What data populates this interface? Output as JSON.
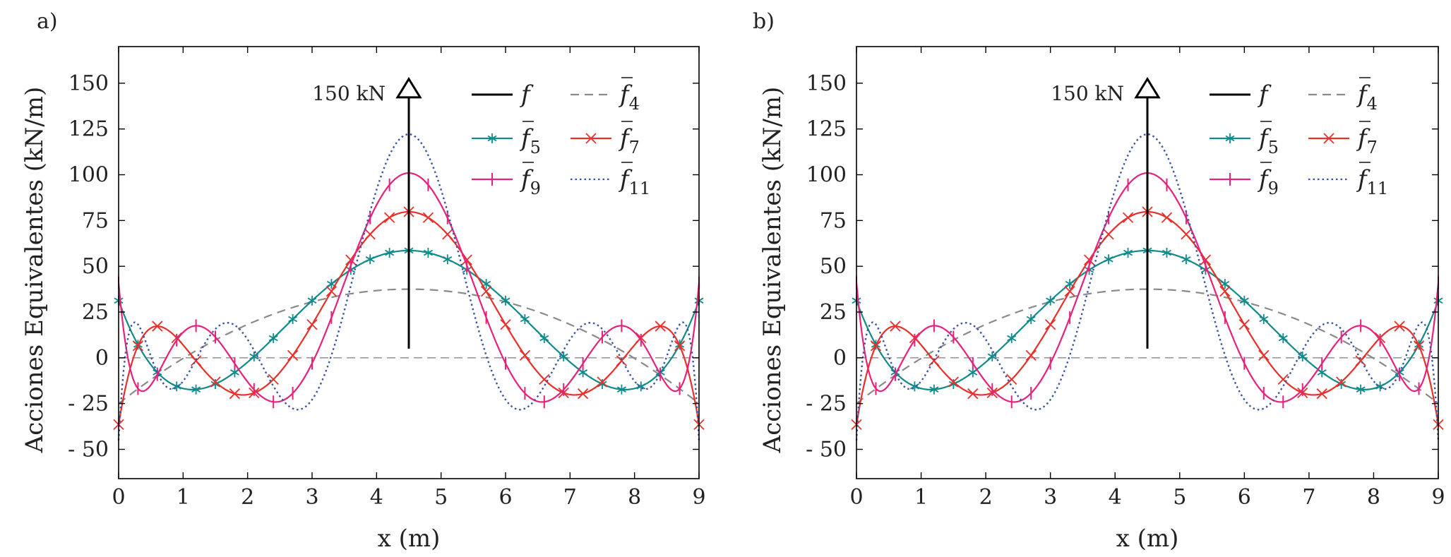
{
  "chart_data": [
    {
      "panel_label": "a)",
      "type": "line",
      "xlabel": "x (m)",
      "ylabel": "Acciones Equivalentes (kN/m)",
      "xlim": [
        0,
        9
      ],
      "ylim": [
        -66,
        170
      ],
      "xticks": [
        "0",
        "1",
        "2",
        "3",
        "4",
        "5",
        "6",
        "7",
        "8",
        "9"
      ],
      "yticks": [
        "- 50",
        "- 25",
        "0",
        "25",
        "50",
        "75",
        "100",
        "125",
        "150"
      ],
      "grid": false,
      "legend_position": "top-right",
      "annotation": {
        "text": "150 kN",
        "x": 4.5,
        "force_kN": 150
      },
      "series": [
        {
          "name": "f",
          "sub": "",
          "bar": false,
          "style": "solid",
          "color": "#000000",
          "marker": "none",
          "kind": "point-load",
          "x": 4.5,
          "value": 150
        },
        {
          "name": "f",
          "sub": "4",
          "bar": true,
          "style": "dashed",
          "color": "#8a8a8a",
          "marker": "none",
          "m": 4
        },
        {
          "name": "f",
          "sub": "5",
          "bar": true,
          "style": "solid",
          "color": "#108a8a",
          "marker": "asterisk",
          "m": 5
        },
        {
          "name": "f",
          "sub": "7",
          "bar": true,
          "style": "solid",
          "color": "#e8302a",
          "marker": "x",
          "m": 7
        },
        {
          "name": "f",
          "sub": "9",
          "bar": true,
          "style": "solid",
          "color": "#e8217a",
          "marker": "bar",
          "m": 9
        },
        {
          "name": "f",
          "sub": "11",
          "bar": true,
          "style": "dotted",
          "color": "#3a52a8",
          "marker": "none",
          "m": 11
        }
      ]
    },
    {
      "panel_label": "b)",
      "type": "line",
      "xlabel": "x (m)",
      "ylabel": "Acciones Equivalentes (kN/m)",
      "xlim": [
        0,
        9
      ],
      "ylim": [
        -66,
        170
      ],
      "xticks": [
        "0",
        "1",
        "2",
        "3",
        "4",
        "5",
        "6",
        "7",
        "8",
        "9"
      ],
      "yticks": [
        "- 50",
        "- 25",
        "0",
        "25",
        "50",
        "75",
        "100",
        "125",
        "150"
      ],
      "grid": false,
      "legend_position": "top-right",
      "annotation": {
        "text": "150 kN",
        "x": 4.5,
        "force_kN": 150
      },
      "series": [
        {
          "name": "f",
          "sub": "",
          "bar": false,
          "style": "solid",
          "color": "#000000",
          "marker": "none",
          "kind": "point-load",
          "x": 4.5,
          "value": 150
        },
        {
          "name": "f",
          "sub": "4",
          "bar": true,
          "style": "dashed",
          "color": "#8a8a8a",
          "marker": "none",
          "m": 4
        },
        {
          "name": "f",
          "sub": "5",
          "bar": true,
          "style": "solid",
          "color": "#108a8a",
          "marker": "asterisk",
          "m": 5
        },
        {
          "name": "f",
          "sub": "7",
          "bar": true,
          "style": "solid",
          "color": "#e8302a",
          "marker": "x",
          "m": 7
        },
        {
          "name": "f",
          "sub": "9",
          "bar": true,
          "style": "solid",
          "color": "#e8217a",
          "marker": "bar",
          "m": 9
        },
        {
          "name": "f",
          "sub": "11",
          "bar": true,
          "style": "dotted",
          "color": "#3a52a8",
          "marker": "none",
          "m": 11
        }
      ]
    }
  ]
}
